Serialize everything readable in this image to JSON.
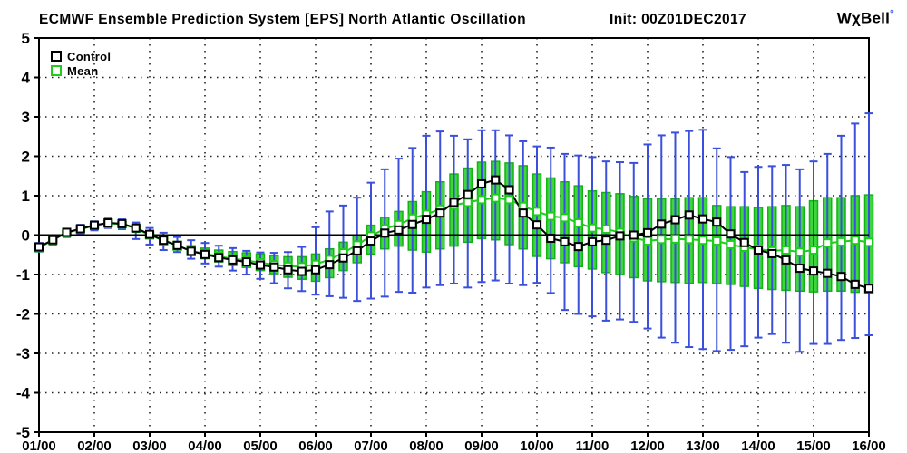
{
  "header": {
    "title": "ECMWF Ensemble Prediction System [EPS] North Atlantic Oscillation",
    "init_label": "Init: 00Z01DEC2017",
    "logo_text": "WχBell",
    "logo_degree": "°"
  },
  "legend": {
    "control_label": "Control",
    "mean_label": "Mean"
  },
  "colors": {
    "control": "#000000",
    "mean": "#1ecc1e",
    "box_fill": "#3fd53f",
    "box_stroke": "#14b214",
    "whisker": "#3a50dd",
    "logo_degree": "#2f6bff",
    "grid": "#222222"
  },
  "chart_data": {
    "type": "box-whisker-line",
    "title": "ECMWF Ensemble Prediction System [EPS] North Atlantic Oscillation",
    "init": "Init: 00Z01DEC2017",
    "xlabel": "",
    "ylabel": "",
    "ylim": [
      -5,
      5
    ],
    "y_ticks": [
      5,
      4,
      3,
      2,
      1,
      0,
      -1,
      -2,
      -3,
      -4,
      -5
    ],
    "x_tick_labels": [
      "01/00",
      "02/00",
      "03/00",
      "04/00",
      "05/00",
      "06/00",
      "07/00",
      "08/00",
      "09/00",
      "10/00",
      "11/00",
      "12/00",
      "13/00",
      "14/00",
      "15/00",
      "16/00"
    ],
    "grid": "dotted",
    "legend_position": "top-left",
    "times": [
      "01/00",
      "01/06",
      "01/12",
      "01/18",
      "02/00",
      "02/06",
      "02/12",
      "02/18",
      "03/00",
      "03/06",
      "03/12",
      "03/18",
      "04/00",
      "04/06",
      "04/12",
      "04/18",
      "05/00",
      "05/06",
      "05/12",
      "05/18",
      "06/00",
      "06/06",
      "06/12",
      "06/18",
      "07/00",
      "07/06",
      "07/12",
      "07/18",
      "08/00",
      "08/06",
      "08/12",
      "08/18",
      "09/00",
      "09/06",
      "09/12",
      "09/18",
      "10/00",
      "10/06",
      "10/12",
      "10/18",
      "11/00",
      "11/06",
      "11/12",
      "11/18",
      "12/00",
      "12/06",
      "12/12",
      "12/18",
      "13/00",
      "13/06",
      "13/12",
      "13/18",
      "14/00",
      "14/06",
      "14/12",
      "14/18",
      "15/00",
      "15/06",
      "15/12",
      "15/18",
      "16/00"
    ],
    "series": [
      {
        "name": "Control",
        "values": [
          -0.3,
          -0.12,
          0.07,
          0.16,
          0.25,
          0.31,
          0.29,
          0.18,
          0.02,
          -0.13,
          -0.26,
          -0.41,
          -0.49,
          -0.57,
          -0.63,
          -0.68,
          -0.76,
          -0.81,
          -0.88,
          -0.92,
          -0.88,
          -0.75,
          -0.58,
          -0.4,
          -0.15,
          0.05,
          0.13,
          0.27,
          0.4,
          0.56,
          0.83,
          1.03,
          1.3,
          1.4,
          1.15,
          0.56,
          0.26,
          -0.08,
          -0.17,
          -0.29,
          -0.17,
          -0.13,
          -0.02,
          0.0,
          0.06,
          0.28,
          0.39,
          0.51,
          0.41,
          0.33,
          0.03,
          -0.19,
          -0.38,
          -0.47,
          -0.63,
          -0.84,
          -0.91,
          -0.97,
          -1.05,
          -1.25,
          -1.35
        ]
      },
      {
        "name": "Mean",
        "values": [
          -0.32,
          -0.13,
          0.06,
          0.15,
          0.24,
          0.3,
          0.28,
          0.17,
          0.0,
          -0.14,
          -0.27,
          -0.4,
          -0.47,
          -0.54,
          -0.6,
          -0.64,
          -0.7,
          -0.75,
          -0.79,
          -0.8,
          -0.74,
          -0.62,
          -0.45,
          -0.25,
          -0.02,
          0.16,
          0.27,
          0.43,
          0.53,
          0.66,
          0.76,
          0.83,
          0.9,
          0.94,
          0.9,
          0.73,
          0.6,
          0.48,
          0.44,
          0.31,
          0.18,
          0.15,
          0.07,
          -0.07,
          -0.15,
          -0.11,
          -0.1,
          -0.11,
          -0.13,
          -0.15,
          -0.24,
          -0.31,
          -0.36,
          -0.4,
          -0.38,
          -0.43,
          -0.38,
          -0.2,
          -0.17,
          -0.13,
          -0.18
        ]
      }
    ],
    "box_high": [
      -0.25,
      -0.07,
      0.11,
      0.2,
      0.29,
      0.36,
      0.34,
      0.24,
      0.08,
      -0.04,
      -0.16,
      -0.27,
      -0.33,
      -0.38,
      -0.42,
      -0.45,
      -0.48,
      -0.52,
      -0.55,
      -0.55,
      -0.48,
      -0.35,
      -0.18,
      0.0,
      0.25,
      0.45,
      0.6,
      0.85,
      1.1,
      1.35,
      1.55,
      1.7,
      1.85,
      1.87,
      1.83,
      1.76,
      1.55,
      1.45,
      1.35,
      1.25,
      1.12,
      1.08,
      1.05,
      0.98,
      0.92,
      0.92,
      0.92,
      0.95,
      0.95,
      0.75,
      0.72,
      0.72,
      0.7,
      0.72,
      0.75,
      0.72,
      0.87,
      0.95,
      0.95,
      1.0,
      1.02
    ],
    "box_low": [
      -0.38,
      -0.19,
      0.0,
      0.09,
      0.18,
      0.24,
      0.21,
      0.1,
      -0.08,
      -0.24,
      -0.38,
      -0.52,
      -0.6,
      -0.68,
      -0.77,
      -0.82,
      -0.9,
      -0.98,
      -1.07,
      -1.12,
      -1.17,
      -1.08,
      -0.9,
      -0.7,
      -0.48,
      -0.35,
      -0.28,
      -0.38,
      -0.43,
      -0.35,
      -0.28,
      -0.18,
      -0.09,
      -0.12,
      -0.24,
      -0.35,
      -0.54,
      -0.6,
      -0.7,
      -0.8,
      -0.86,
      -0.95,
      -1.0,
      -1.08,
      -1.16,
      -1.18,
      -1.2,
      -1.22,
      -1.2,
      -1.23,
      -1.25,
      -1.3,
      -1.35,
      -1.38,
      -1.4,
      -1.42,
      -1.44,
      -1.42,
      -1.42,
      -1.45,
      -1.47
    ],
    "whisker_high": [
      -0.2,
      -0.02,
      0.16,
      0.26,
      0.35,
      0.42,
      0.4,
      0.32,
      0.18,
      0.06,
      -0.05,
      -0.13,
      -0.2,
      -0.27,
      -0.33,
      -0.4,
      -0.44,
      -0.45,
      -0.43,
      -0.3,
      0.2,
      0.6,
      0.75,
      0.95,
      1.33,
      1.67,
      1.94,
      2.21,
      2.52,
      2.63,
      2.52,
      2.43,
      2.66,
      2.66,
      2.53,
      2.38,
      2.25,
      2.22,
      2.06,
      2.02,
      1.98,
      1.87,
      1.85,
      1.83,
      2.3,
      2.53,
      2.6,
      2.64,
      2.67,
      2.2,
      1.98,
      1.6,
      1.73,
      1.75,
      1.78,
      1.67,
      1.87,
      2.06,
      2.52,
      2.83,
      3.09
    ],
    "whisker_low": [
      -0.42,
      -0.24,
      -0.05,
      0.04,
      0.12,
      0.18,
      0.15,
      -0.1,
      -0.24,
      -0.38,
      -0.43,
      -0.6,
      -0.72,
      -0.8,
      -0.9,
      -1.0,
      -1.11,
      -1.22,
      -1.35,
      -1.42,
      -1.51,
      -1.55,
      -1.59,
      -1.67,
      -1.61,
      -1.56,
      -1.44,
      -1.46,
      -1.33,
      -1.27,
      -1.23,
      -1.33,
      -1.19,
      -1.15,
      -1.23,
      -1.27,
      -1.21,
      -1.47,
      -1.9,
      -2.0,
      -2.06,
      -2.17,
      -2.14,
      -2.2,
      -2.37,
      -2.6,
      -2.73,
      -2.84,
      -2.89,
      -2.94,
      -2.91,
      -2.82,
      -2.6,
      -2.51,
      -2.73,
      -2.96,
      -2.76,
      -2.76,
      -2.66,
      -2.61,
      -2.54
    ]
  }
}
